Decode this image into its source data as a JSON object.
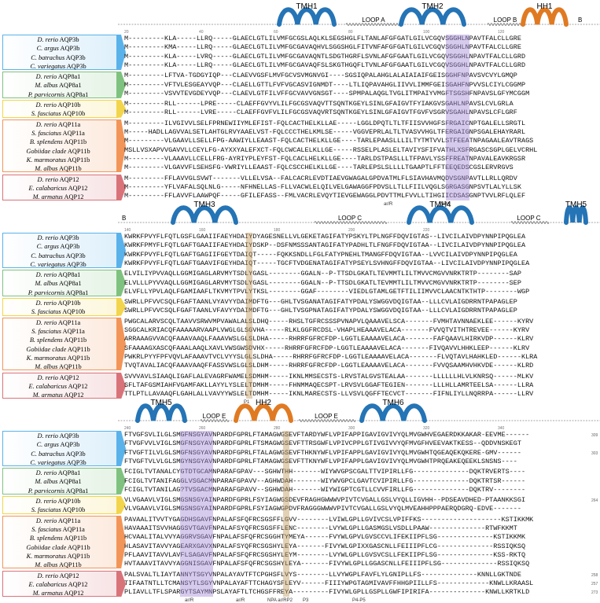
{
  "panels": [
    {
      "topo": [
        "TMH1",
        "LOOP A",
        "TMH2",
        "LOOP B",
        "HH1",
        "B"
      ],
      "positions": [
        "20",
        "40",
        "60",
        "80",
        "100",
        "120"
      ],
      "seqs": [
        "M---------KLA-----LLRQ-----GLAECLGTLILVMFGCGSLAQLKLSEGSHGLFLTANLAFGFGATLGILVCGQVSGGHLNPAVTFALCLLGRE",
        "M---------KMA-----LLRQ-----GLAECLGTLILVMFGCGAVAQHVLSGGSHGLFITVNFAFGFGATLGILVCGQVSGGHLNPAVTFALCLLGRE",
        "M---------KLA-----LVRQ-----GLAECLGTLILVMFGCGAVAQNTLSDGTHGRFLSVNLAFGFGAATLGILVCGQVSGGHLNPAVTFALCLLGRD",
        "M---------KLA-----LLRQ-----GLAECLGTLILVMFGCGAVAQFSLSKGTHGQFLTVNLAFGFGAATLGILVCGQVSGGHLNPAVTFALCLLGRD",
        "M---------LFTVA-TGDGYIQP---CLAEVVGSFLMVFGCVSVMGNVGI----SGSIQPALAHGLALAIAIAIFGEISGGHFNPAVSVCVYLGMQP",
        "M---------VFTVLESGEAYVQP---CLAELLGTTLFVFVGCASVIGNMDT----LTLIQPAVAHGLIIVVLIMMFGEISGAHFNPVVSLCIYLCGGMP",
        "M---------VSVVTEVGDEYVQP---CLAEVLGTFILVFFGCVAVVGNSGT----SPMPALAQGLTVGLITMPAIYVMGFTSGSHFNPAVSLGFYMCGGM",
        "M---------RLL------LPRE-----CLAEFFGVYVLILFGCGSVAQVTTSQNTKGEYLSINLGFAIGVTFYIAKGVSGAHLNPAVSLCVLGRLA",
        "M---------RLL------LVRE-----CLAEFFGVFVLILFGCGSVAQVRTSQNTKGEYLSINLGFAIGVTFGVFVSGRVSGAHLNPAVSLCFLGRF",
        "M---------ILVGIVVLSELFPRNEWIIYMLEFIST-FQLCACTHELKLLAE-----LGGLDPQTLTLTFIISVVHGFSFRGAICNPTGALELLSRGTL",
        "M-----HADLLAGVVALSETLAHTGLRVYAAELVST-FQLCCCTHELKMLSE-----VGGVEPRLALTLTVASVVHGLTFERGAIGNPSGALEHAYRARL",
        "M---------VLGAAVLLSELLFPG-AAWIYLLEAAST-FQLCACTHELKLLGE----TARLEPAASLLLILTYTMTVVLSTFEEATNPAGAALEAVTRAGS",
        "MSLLVSXAPVVGAVVLLCEYLFG-AYXXYALEFXCT-FQLCWCALELKLLGE-----RSSELPLASLELTAVIYSFIFVATHLXSFRGASCSGPLGELVCRHL",
        "M---------VLAAAVLLCELLFRG-AYRIYPLEYFST-FQLCACLHELKLLGE----TARLDSTPASLLLTFPAVLYSSFFREATNPAVALEAVKRGSR",
        "M---------VLGAVVFLSEHSFG-VWRIYLLEAAST-FQLCSCCHELKLLGE----TARLEPSLSLLLLTGAAPTLFFTEEQEDSCGSLERVRGVS",
        "M---------FFLAVVGLSVWT-------VLLELVSA--FALCACRLEVDTIAEVGWAGALGPDVATMLFLSIAVHAVMQDVSGNPAVTLLRLLQRDV",
        "M---------YFLVAFALSQLNLG-----NFHNELLAS-FLLVACWLELQILVELGAWAGGFPDVSLLTLLFIILVQGLSGRGASGNPSVTLALYLLSK",
        "M---------FFLAVVFLAAWPQF-----GFILEFASS--FMLVACRLEVQYTIEVGEWAGGLPDVTTMLFVVLLTIHGIICDSASGNPTVVLRFLQLEF"
      ],
      "foot": [
        "ar/R",
        "NPA"
      ],
      "endnums": []
    },
    {
      "topo": [
        "B",
        "TMH3",
        "LOOP C",
        "TMH4",
        "LOOP C",
        "TMH5"
      ],
      "positions": [
        "140",
        "160",
        "180",
        "200",
        "220"
      ],
      "seqs": [
        "KWRKFPVYFLFQTLGSFLGAAIIFAEYHDAIYDYAGESNELLVLGEKETAGIFATYPSKYLTPLNGFFDQVIGTAS--LIVCILAIVDPYNNPIPQGLEA",
        "KWRKFPMYFLFQTLGAFTGAAIIFAEYHDAIYDSKP--DSFNMSSSANTAGIFATYPADHLTLFNGFFDQVIGTAA--LIVCILAIVDPYNNPIPQGLEA",
        "KWRKFPVYFLFQTLGAFTGAGIIFGEYTDAIQT-----FQKKSNDLLFGLFATYPNEHLTMANGFFDQVIGTAA--LVVCILAIVDPYNNPIPQGLEA",
        "KWRKFPVYFLFQTLGAFTGAAVIFGEYHDAIQT-----TGCFTVDGENATAGIFATYPSEYLSVHNGFFDQVIGTAA--LIVCILAIVDPYNNPIPQGLEA",
        "ELVILIYPVVAQLLGGMIGAGLARVMYTSDLYGASL--------GGALN--P-TTSDLGKATLTEVMMTLILTMVVCMGVVNRKTRTP--------SAP",
        "ELVLLLPYVVAQLLGGMIGAGLARVMYTSDLYGASL--------GGALN--P-TTSDLGKATLTEVMMTLILTMVVCMGVVNRKTRTP--------SEP",
        "ELVFLLYPVLAQLFGAMIAAFLTKVMYTPVLYTKSL--------GGAF--------VIEDLGTAMLGETFTILIIMVVCLAACNTKTHTP--------WGP",
        "SWRLLPFVVCSQLFGAFTAANLVYAVYYDAIMDFTG---GHLTVSGANATAGIFATYPDALYSWGGVDQIGTAA--LLLCVLAIGDRRNTPAPAGLEP",
        "SWRLLPFVVCSQLFGAFTAANLVFAVYYDAIMDFTG---GHLTVSGPNATAGIFATYPDALYSWGGVDQIGTAA--LLLCVLAIGDRRNTPAPAGLEP",
        "PWGCALARVSCQLTAAVVSRWVMPVAWALALSLDHQ-----RHSLTGFRCSSSPVNAPVLQAAAVELSCA-------FVMHTAVNNAEKLEE------KYRV",
        "SGGCALKRIACQFAAAAARVAAPLVWGLGLSGVHA-----RLKLGGFRCDSL-VHAPLHEAAAVELACA-------FVVQTVITHTREVEE------KYRV",
        "ARRAAAGVVACQFAAAVAAQLFAAAVWSLGLSLDHA-----RHRRFGFRCFDP-LGGTLEAAAAVELACA-------FAFQAAVLHIRKVDP------KLRV",
        "SFAAAAGXASCQFAAALAAQLXAVLVWSGWSDVHX-----RHRRFGFRCFDP-LGGTLEAAAAVELACA-------FIVQAVVLHHKLEEP------KLRV",
        "PWKRLPYYFPFVQVLAFAAAVTVCLVYYSLGLSLDHA-----RHRRFGFRCFDP-LGGTLEAAAAVELACA-------FLVQTAVLHAHKLED------KLRA",
        "TVQTAVALIACQFAAAVAAQFFASSVWSLGLSLDHM-----RHRRFGFRCFDP-LGGTLEAAAAVELACA-------FVVQSAAMHVHKVDE------KLRD",
        "SVVVAVLSIAAQLIGAFLALEVAGRFWAMELSDMHM-----IKNLMMSECSTS-LRVSTALGVSTEALAA-------LLLLLLHLVLKNRSQ------MLKV",
        "SFLTAFGSMIAHFVGAMFAKLLAYYLYSLELTDMHM-----FHNMMAQECSPT-LRVSVLGGAFTEGIEN-------LLLHLLAMRTEELSA------LLRA",
        "TTLPTLLAVAAQFLGAHLALLVAVYYWSLELTDMHM-----IKNLMARECSTS-LLVSVLQGFFTECVCT-------FIFNLIYLLNQRRPA------LLRV"
      ],
      "foot": [
        "P1"
      ],
      "endnums": []
    },
    {
      "topo": [
        "TMH5",
        "LOOP E",
        "HH2",
        "LOOP E",
        "TMH6"
      ],
      "positions": [
        "240",
        "260",
        "280",
        "300",
        "320",
        "340"
      ],
      "seqs": [
        "FTVGFSVLILGLSMGFNSGYAVNPARDFGPRLFTAMAGWGSEVFTARDYWFLVPIFAPPIGAVIGVIVYQLMVGWHVEGAERDKKAKAR-EEVME------",
        "FTVGFVVLVIGLSMGFNSGYAVNPARDFGPRLFTSMAGWGSEVFTTRSGWFLVPIVCPPLGTIVGIVVYQFMVGFHVEEVAKTKESS--QDDVNSKEGT",
        "FTVGFTILVLGLSMGFNSGYAVNPARDFGPRLFTALAGWGSEVFTHKNYWFLVPIFAPPLGAVIGVIVYQLMVGWHTQGEAQEKQKERE-GMV------",
        "FTVGFTVLVLGLSMGYNSGYAVNPARDFGPRLFTAMAGWGSEVFTTKNYWFLVPIFAPPLGAVIGVIVYQLMVGWHTPRQEAKEQEEKLSNSNS----",
        "FCIGLTVTANALCYGTDTGCAMNPARAFGPAV---SGHWTHH-------WIYWVGPSCGALTTVIPIRLLFG--------------DQKTRVERTS----",
        "FCIGLTVTANIFAGGLVSGACMNPARAFGPAVV--AGHWDAH-------WIYWVGPCLGAVTCVIPIRLLFG--------------DQKTRTSR------",
        "FCIGLTVTANILAG?TVSGACMNPARAFGPAVV--SGHWDAH-------WIYWIGPTCGTLLCVVFIRLLFG--------------DQKTRV--------",
        "VLVGAAVLVIGLSMGSNSGYAINPARDFGPRLFSYIAGWGSDEVFRAGHGWWWVPIVTCVGALLGSLVYQLLIGVHH--PDSEAVDHED-PTAANKKSGI",
        "VLVGAAVLVIGLSMGSNSGYAINPARDFGPRLFSYIAGWGPDVFRAGGGWWWVPIVTCVGALLGSLVYQLMVEAHHPPPAERQDGRQ-EDVE-------",
        "PAVAALITVVTYGAGDHSGAVFNPALAFSFQFRCSGSFFLGVV--------LVIWLGPLLGVIVCSLVPIFFKS--------------------KSTIKKMK",
        "HAVAAAITSVVHAGGSVTGAVFNPALAFSYQFRCSGSFFLENC--------LVYWLGPLLGASMGSLVSDLLPAAW--------------RTWFKKMT",
        "HCVAALITALVVYAGGRVSGAVFNPALAFSFQFRCSGGHTYMEYA------FVYWLGPVLGVSCCVLIFEKIIPFLSG--------------KSTIKKMK",
        "HLASAVITAVVYAGEARXGAVXNPALAFSYQFRCSGSHYLEYA-------FIVYWLGPIXXGASCNLLFEIIIPFLCG--------------RSSIQKSQ",
        "PFLAAVITAVVLAVFLSAGAVFNPALAFSFQFRCSGSHYLEYM--------LVYWLGPLLGVSVCSLLFEKIIPFLSG--------------KSS-RKTQ",
        "HVTAAAVITAVVYAGGNISGAVFNPALAFSFQFRCSGSHYLEYA-------FIVYWLGPLLGGASCNLLFEIIIPFLSG--------------RSSIQKSQ",
        "PALSVALTLIAYTANNYTSGYVNPALAYAVTFTCPGHSFLVYS--------LLVYWGPLFAVFLYLGNIPLLFS--------------KNNLLGKTNDE",
        "TIFAATNTLLTCMANSYTLSGYVNPALAYAFTTCHAGYSFLEYV------FIIIYWPGTAGMIVAVFFHHGPIILLFS-------------KNWLLKRAASL",
        "PLIAVLLTFLSPARGYTSAYMNPSLAYAFTLTCHGSFFREYA---------FIVYWLGPLLGSPLLGWFIPIRIFA--------------KNWLLKRTKLD"
      ],
      "foot": [
        "ar/R",
        "ar/R",
        "NPA ar/RP2",
        "P3",
        "P4-P5"
      ],
      "endnums": [
        "309",
        "",
        "303",
        "",
        "",
        "",
        "",
        "264",
        "",
        "",
        "",
        "",
        "",
        "",
        "",
        "258",
        "257",
        "273"
      ]
    }
  ],
  "groups": [
    {
      "color": "#5ab2ea",
      "rows": [
        [
          "D. rerio",
          "AQP3b"
        ],
        [
          "C. argus",
          "AQP3b"
        ],
        [
          "C. batrachus",
          "AQP3b"
        ],
        [
          "C. variegatus",
          "AQP3b"
        ]
      ]
    },
    {
      "color": "#7fc27f",
      "rows": [
        [
          "D. rerio",
          "AQP8a1"
        ],
        [
          "M. albus",
          "AQP8a1"
        ],
        [
          "P. parvicornis",
          "AQP8a1"
        ]
      ]
    },
    {
      "color": "#f2d54c",
      "rows": [
        [
          "D. rerio",
          "AQP10b"
        ],
        [
          "S. fasciatus",
          "AQP10b"
        ]
      ]
    },
    {
      "color": "#f29558",
      "rows": [
        [
          "D. rerio",
          "AQP11a"
        ],
        [
          "S. fasciatus",
          "AQP11a"
        ],
        [
          "B. splendens",
          "AQP11b"
        ],
        [
          "Gobiidae clade",
          "AQP11b"
        ],
        [
          "K. marmoratus",
          "AQP11b"
        ],
        [
          "M. albus",
          "AQP11b"
        ]
      ]
    },
    {
      "color": "#d9737a",
      "rows": [
        [
          "D. rerio",
          "AQP12"
        ],
        [
          "E. calabaricus",
          "AQP12"
        ],
        [
          "M. armatus",
          "AQP12"
        ]
      ]
    }
  ]
}
